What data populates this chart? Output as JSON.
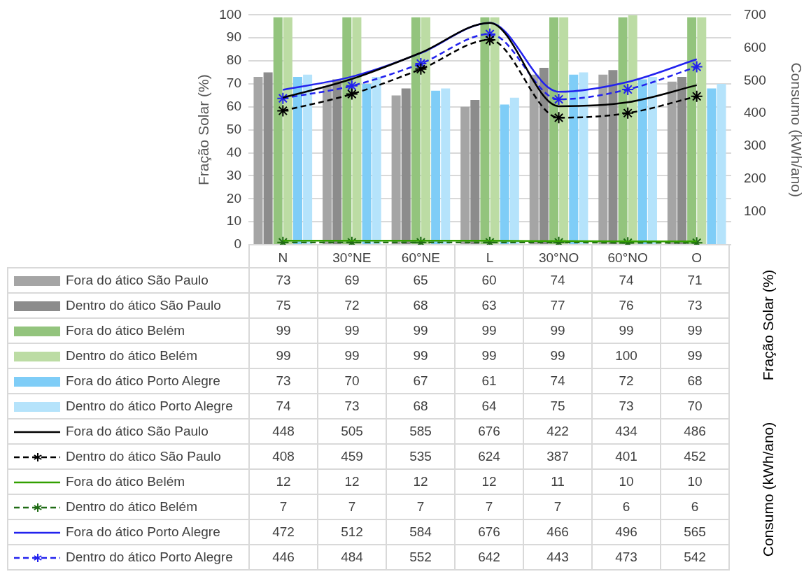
{
  "chart_data": {
    "type": "bar",
    "ylabel": "Fração Solar (%)",
    "y2label": "Consumo (kWh/ano)",
    "categories": [
      "N",
      "30°NE",
      "60°NE",
      "L",
      "30°NO",
      "60°NO",
      "O"
    ],
    "ylim": [
      0,
      100
    ],
    "yticks": [
      0,
      10,
      20,
      30,
      40,
      50,
      60,
      70,
      80,
      90,
      100
    ],
    "y2lim": [
      0,
      700
    ],
    "y2ticks": [
      100,
      200,
      300,
      400,
      500,
      600,
      700
    ],
    "grid": "y",
    "legend": "bottom",
    "data_labels": true,
    "annotations": [
      "Fração Solar (%)",
      "Consumo (kWh/ano)"
    ],
    "series": [
      {
        "name": "Fora do ático São Paulo",
        "color": "#a5a5a5",
        "values": [
          73,
          69,
          65,
          60,
          74,
          74,
          71
        ]
      },
      {
        "name": "Dentro do ático São Paulo",
        "color": "#8c8c8c",
        "values": [
          75,
          72,
          68,
          63,
          77,
          76,
          73
        ]
      },
      {
        "name": "Fora do ático Belém",
        "color": "#93c47d",
        "values": [
          99,
          99,
          99,
          99,
          99,
          99,
          99
        ]
      },
      {
        "name": "Dentro do ático Belém",
        "color": "#bcdca4",
        "values": [
          99,
          99,
          99,
          99,
          99,
          100,
          99
        ]
      },
      {
        "name": "Fora do ático Porto Alegre",
        "color": "#7fcdf7",
        "values": [
          73,
          70,
          67,
          61,
          74,
          72,
          68
        ]
      },
      {
        "name": "Dentro do ático Porto Alegre",
        "color": "#b5e3fb",
        "values": [
          74,
          73,
          68,
          64,
          75,
          73,
          70
        ]
      },
      {
        "name": "Fora do ático São Paulo",
        "type": "line",
        "axis": "y2",
        "color": "#000000",
        "marker": "none",
        "line_style": "solid",
        "values": [
          448,
          505,
          585,
          676,
          422,
          434,
          486
        ]
      },
      {
        "name": "Dentro do ático São Paulo",
        "type": "line",
        "axis": "y2",
        "color": "#000000",
        "marker": "cross",
        "line_style": "dashed",
        "values": [
          408,
          459,
          535,
          624,
          387,
          401,
          452
        ]
      },
      {
        "name": "Fora do ático Belém",
        "type": "line",
        "axis": "y2",
        "color": "#33a000",
        "marker": "none",
        "line_style": "solid",
        "values": [
          12,
          12,
          12,
          12,
          11,
          10,
          10
        ]
      },
      {
        "name": "Dentro do ático Belém",
        "type": "line",
        "axis": "y2",
        "color": "#1f6b14",
        "marker": "cross",
        "line_style": "dashed",
        "values": [
          7,
          7,
          7,
          7,
          7,
          6,
          6
        ]
      },
      {
        "name": "Fora do ático Porto Alegre",
        "type": "line",
        "axis": "y2",
        "color": "#2222ee",
        "marker": "none",
        "line_style": "solid",
        "values": [
          472,
          512,
          584,
          676,
          466,
          496,
          565
        ]
      },
      {
        "name": "Dentro do ático Porto Alegre",
        "type": "line",
        "axis": "y2",
        "color": "#2222ee",
        "marker": "cross",
        "line_style": "dashed",
        "values": [
          446,
          484,
          552,
          642,
          443,
          473,
          542
        ]
      }
    ]
  }
}
